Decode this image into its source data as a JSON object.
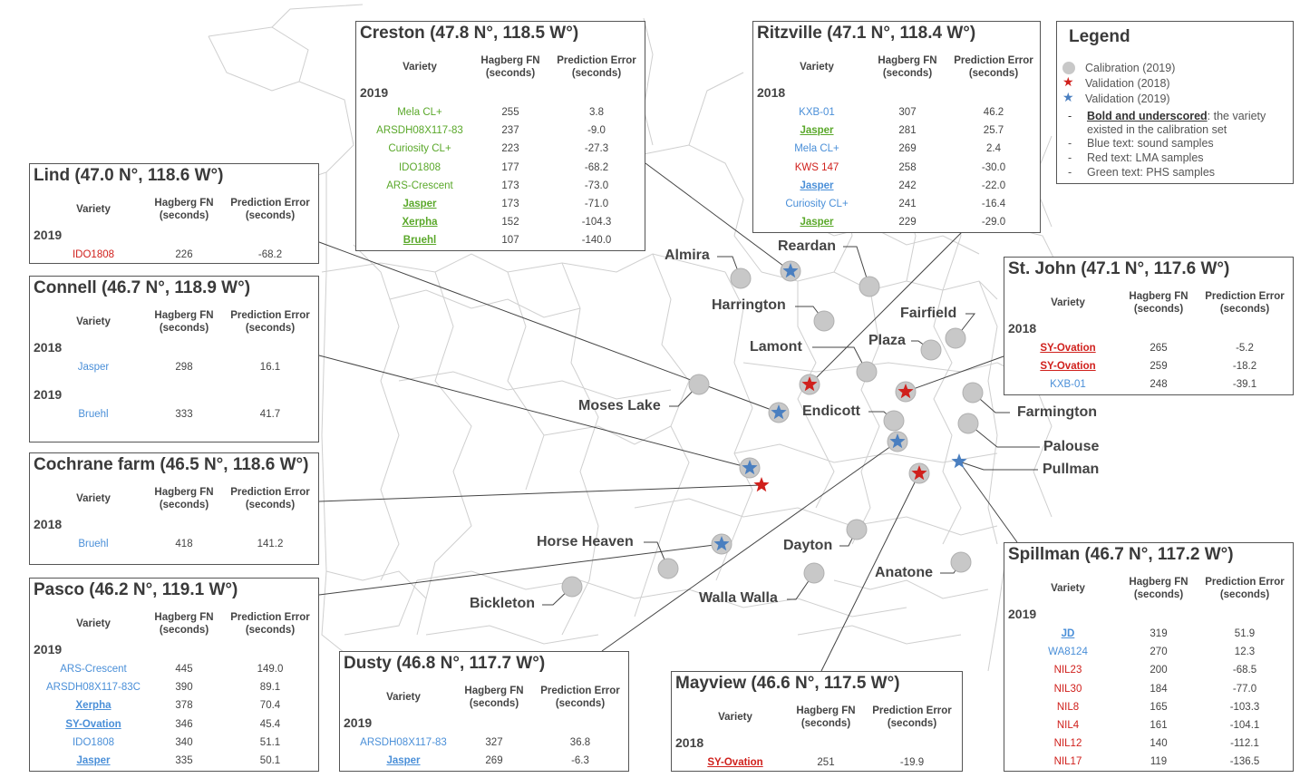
{
  "columns": {
    "variety": "Variety",
    "fn": "Hagberg FN",
    "fn_sub": "(seconds)",
    "err": "Prediction Error",
    "err_sub": "(seconds)"
  },
  "legend": {
    "title": "Legend",
    "calibration": "Calibration (2019)",
    "val2018": "Validation  (2018)",
    "val2019": "Validation  (2019)",
    "bold_strong": "Bold and underscored",
    "bold_rest": ": the variety",
    "bold_line2": "existed in the calibration set",
    "blue": "Blue text: sound samples",
    "red": "Red text: LMA samples",
    "green": "Green text: PHS samples",
    "colors": {
      "calibration": "#c8c8c8",
      "val2018": "#d0201c",
      "val2019": "#4a7fc0",
      "sound": "#4a8fd8",
      "lma": "#d0201c",
      "phs": "#5aa82a"
    }
  },
  "places": {
    "almira": "Almira",
    "reardan": "Reardan",
    "harrington": "Harrington",
    "fairfield": "Fairfield",
    "lamont": "Lamont",
    "plaza": "Plaza",
    "moses_lake": "Moses Lake",
    "endicott": "Endicott",
    "farmington": "Farmington",
    "palouse": "Palouse",
    "pullman": "Pullman",
    "horse_heaven": "Horse Heaven",
    "dayton": "Dayton",
    "bickleton": "Bickleton",
    "anatone": "Anatone",
    "walla_walla": "Walla Walla"
  },
  "sites": {
    "creston": {
      "title": "Creston (47.8 N°, 118.5 W°)",
      "years": [
        {
          "year": "2019",
          "rows": [
            {
              "v": "Mela CL+",
              "fn": "255",
              "err": "3.8",
              "c": "green",
              "u": false
            },
            {
              "v": "ARSDH08X117-83",
              "fn": "237",
              "err": "-9.0",
              "c": "green",
              "u": false
            },
            {
              "v": "Curiosity CL+",
              "fn": "223",
              "err": "-27.3",
              "c": "green",
              "u": false
            },
            {
              "v": "IDO1808",
              "fn": "177",
              "err": "-68.2",
              "c": "green",
              "u": false
            },
            {
              "v": "ARS-Crescent",
              "fn": "173",
              "err": "-73.0",
              "c": "green",
              "u": false
            },
            {
              "v": "Jasper",
              "fn": "173",
              "err": "-71.0",
              "c": "green",
              "u": true
            },
            {
              "v": "Xerpha",
              "fn": "152",
              "err": "-104.3",
              "c": "green",
              "u": true
            },
            {
              "v": "Bruehl",
              "fn": "107",
              "err": "-140.0",
              "c": "green",
              "u": true
            }
          ]
        }
      ]
    },
    "ritzville": {
      "title": "Ritzville (47.1 N°, 118.4 W°)",
      "years": [
        {
          "year": "2018",
          "rows": [
            {
              "v": "KXB-01",
              "fn": "307",
              "err": "46.2",
              "c": "blue",
              "u": false
            },
            {
              "v": "Jasper",
              "fn": "281",
              "err": "25.7",
              "c": "green",
              "u": true
            },
            {
              "v": "Mela CL+",
              "fn": "269",
              "err": "2.4",
              "c": "blue",
              "u": false
            },
            {
              "v": "KWS 147",
              "fn": "258",
              "err": "-30.0",
              "c": "red",
              "u": false
            },
            {
              "v": "Jasper",
              "fn": "242",
              "err": "-22.0",
              "c": "blue",
              "u": true
            },
            {
              "v": "Curiosity CL+",
              "fn": "241",
              "err": "-16.4",
              "c": "blue",
              "u": false
            },
            {
              "v": "Jasper",
              "fn": "229",
              "err": "-29.0",
              "c": "green",
              "u": true
            }
          ]
        }
      ]
    },
    "lind": {
      "title": "Lind (47.0 N°, 118.6 W°)",
      "years": [
        {
          "year": "2019",
          "rows": [
            {
              "v": "IDO1808",
              "fn": "226",
              "err": "-68.2",
              "c": "red",
              "u": false
            }
          ]
        }
      ]
    },
    "connell": {
      "title": "Connell (46.7 N°, 118.9 W°)",
      "years": [
        {
          "year": "2018",
          "rows": [
            {
              "v": "Jasper",
              "fn": "298",
              "err": "16.1",
              "c": "blue",
              "u": false
            }
          ]
        },
        {
          "year": "2019",
          "rows": [
            {
              "v": "Bruehl",
              "fn": "333",
              "err": "41.7",
              "c": "blue",
              "u": false
            }
          ]
        }
      ]
    },
    "cochrane": {
      "title": "Cochrane farm (46.5 N°, 118.6 W°)",
      "years": [
        {
          "year": "2018",
          "rows": [
            {
              "v": "Bruehl",
              "fn": "418",
              "err": "141.2",
              "c": "blue",
              "u": false
            }
          ]
        }
      ]
    },
    "pasco": {
      "title": "Pasco (46.2 N°, 119.1 W°)",
      "years": [
        {
          "year": "2019",
          "rows": [
            {
              "v": "ARS-Crescent",
              "fn": "445",
              "err": "149.0",
              "c": "blue",
              "u": false
            },
            {
              "v": "ARSDH08X117-83C",
              "fn": "390",
              "err": "89.1",
              "c": "blue",
              "u": false
            },
            {
              "v": "Xerpha",
              "fn": "378",
              "err": "70.4",
              "c": "blue",
              "u": true
            },
            {
              "v": "SY-Ovation",
              "fn": "346",
              "err": "45.4",
              "c": "blue",
              "u": true
            },
            {
              "v": "IDO1808",
              "fn": "340",
              "err": "51.1",
              "c": "blue",
              "u": false
            },
            {
              "v": "Jasper",
              "fn": "335",
              "err": "50.1",
              "c": "blue",
              "u": true
            }
          ]
        }
      ]
    },
    "dusty": {
      "title": "Dusty (46.8 N°, 117.7 W°)",
      "years": [
        {
          "year": "2019",
          "rows": [
            {
              "v": "ARSDH08X117-83",
              "fn": "327",
              "err": "36.8",
              "c": "blue",
              "u": false
            },
            {
              "v": "Jasper",
              "fn": "269",
              "err": "-6.3",
              "c": "blue",
              "u": true
            }
          ]
        }
      ]
    },
    "mayview": {
      "title": "Mayview (46.6 N°, 117.5 W°)",
      "years": [
        {
          "year": "2018",
          "rows": [
            {
              "v": "SY-Ovation",
              "fn": "251",
              "err": "-19.9",
              "c": "red",
              "u": true
            }
          ]
        }
      ]
    },
    "stjohn": {
      "title": "St. John (47.1 N°, 117.6 W°)",
      "years": [
        {
          "year": "2018",
          "rows": [
            {
              "v": "SY-Ovation",
              "fn": "265",
              "err": "-5.2",
              "c": "red",
              "u": true
            },
            {
              "v": "SY-Ovation",
              "fn": "259",
              "err": "-18.2",
              "c": "red",
              "u": true
            },
            {
              "v": "KXB-01",
              "fn": "248",
              "err": "-39.1",
              "c": "blue",
              "u": false
            }
          ]
        }
      ]
    },
    "spillman": {
      "title": "Spillman (46.7 N°, 117.2 W°)",
      "years": [
        {
          "year": "2019",
          "rows": [
            {
              "v": "JD",
              "fn": "319",
              "err": "51.9",
              "c": "blue",
              "u": true
            },
            {
              "v": "WA8124",
              "fn": "270",
              "err": "12.3",
              "c": "blue",
              "u": false
            },
            {
              "v": "NIL23",
              "fn": "200",
              "err": "-68.5",
              "c": "red",
              "u": false
            },
            {
              "v": "NIL30",
              "fn": "184",
              "err": "-77.0",
              "c": "red",
              "u": false
            },
            {
              "v": "NIL8",
              "fn": "165",
              "err": "-103.3",
              "c": "red",
              "u": false
            },
            {
              "v": "NIL4",
              "fn": "161",
              "err": "-104.1",
              "c": "red",
              "u": false
            },
            {
              "v": "NIL12",
              "fn": "140",
              "err": "-112.1",
              "c": "red",
              "u": false
            },
            {
              "v": "NIL17",
              "fn": "119",
              "err": "-136.5",
              "c": "red",
              "u": false
            }
          ]
        }
      ]
    }
  }
}
